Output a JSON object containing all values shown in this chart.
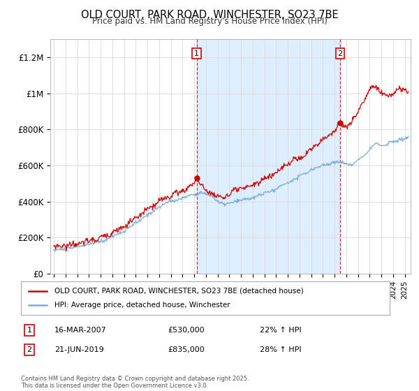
{
  "title": "OLD COURT, PARK ROAD, WINCHESTER, SO23 7BE",
  "subtitle": "Price paid vs. HM Land Registry's House Price Index (HPI)",
  "ylabel_ticks": [
    "£0",
    "£200K",
    "£400K",
    "£600K",
    "£800K",
    "£1M",
    "£1.2M"
  ],
  "ytick_values": [
    0,
    200000,
    400000,
    600000,
    800000,
    1000000,
    1200000
  ],
  "ylim": [
    0,
    1300000
  ],
  "xlim_start": 1994.7,
  "xlim_end": 2025.5,
  "line1_color": "#cc0000",
  "line2_color": "#7aabdc",
  "vline_color": "#cc0000",
  "shade_color": "#ddeeff",
  "marker1_date": 2007.21,
  "marker2_date": 2019.47,
  "annotation_rows": [
    {
      "num": "1",
      "date": "16-MAR-2007",
      "price": "£530,000",
      "change": "22% ↑ HPI"
    },
    {
      "num": "2",
      "date": "21-JUN-2019",
      "price": "£835,000",
      "change": "28% ↑ HPI"
    }
  ],
  "legend_line1": "OLD COURT, PARK ROAD, WINCHESTER, SO23 7BE (detached house)",
  "legend_line2": "HPI: Average price, detached house, Winchester",
  "footer": "Contains HM Land Registry data © Crown copyright and database right 2025.\nThis data is licensed under the Open Government Licence v3.0.",
  "background_color": "#ffffff",
  "plot_bg_color": "#ffffff",
  "grid_color": "#dddddd"
}
